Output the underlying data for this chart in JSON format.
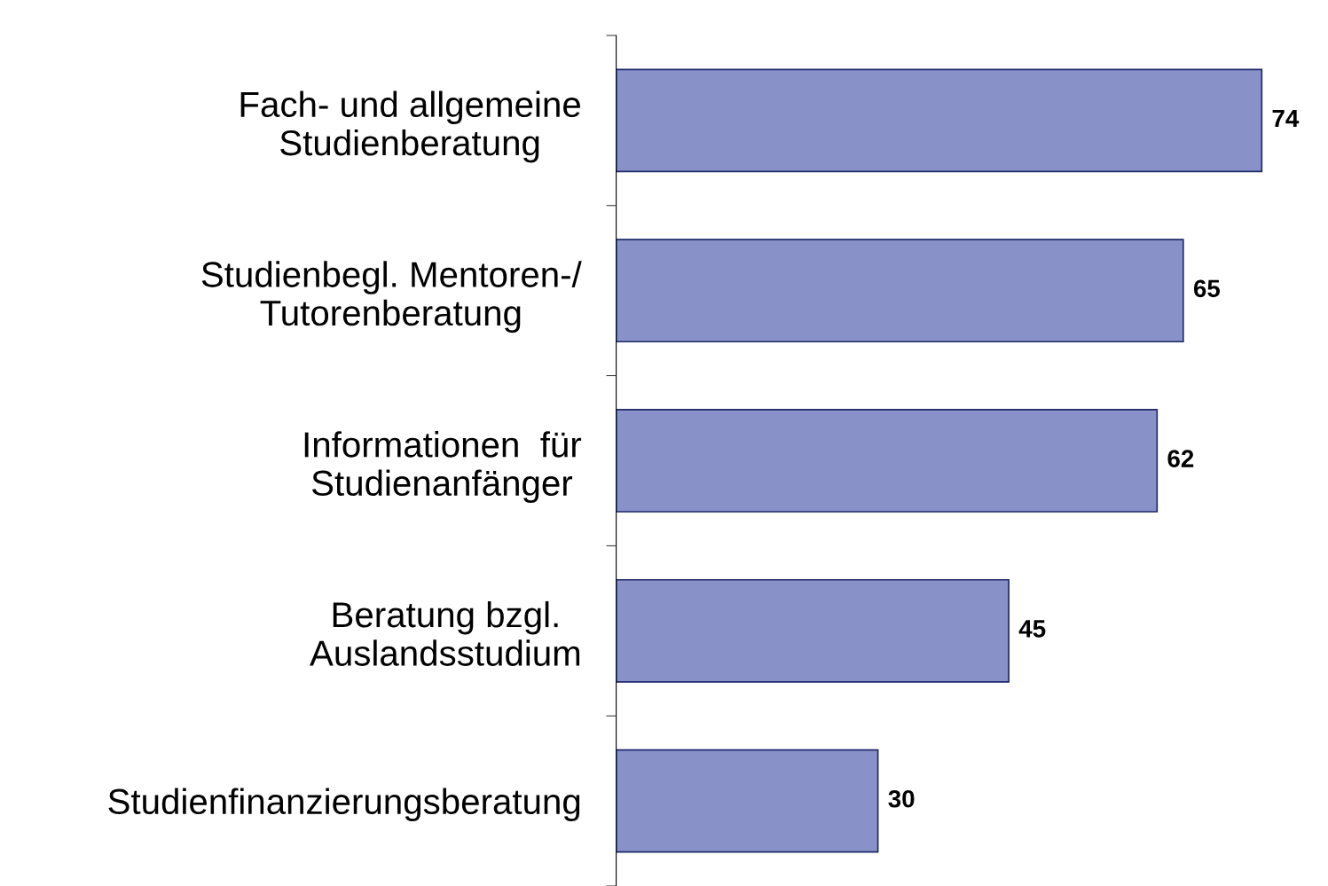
{
  "chart_data": {
    "type": "bar",
    "orientation": "horizontal",
    "categories": [
      "Fach- und allgemeine\nStudienberatung",
      "Studienbegl. Mentoren-/\nTutorenberatung",
      "Informationen  für\nStudienanfänger",
      "Beratung bzgl.\nAuslandsstudium",
      "Studienfinanzierungsberatung"
    ],
    "values": [
      74,
      65,
      62,
      45,
      30
    ],
    "color": "#8891c8",
    "data_labels": true,
    "tick_labels": "y"
  }
}
